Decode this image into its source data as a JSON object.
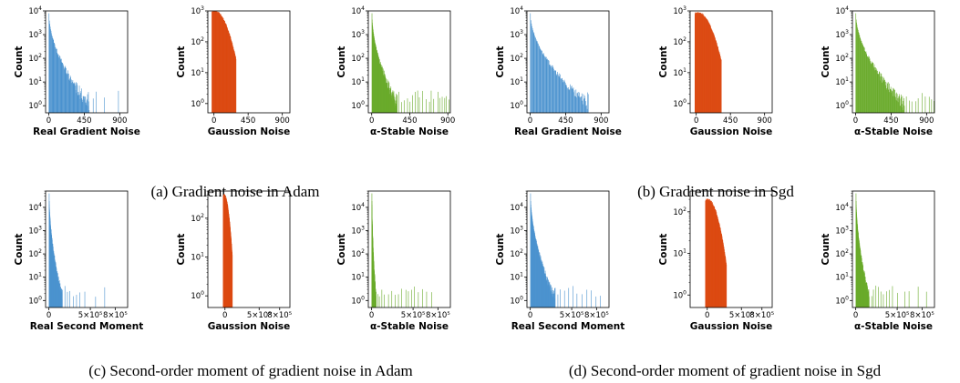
{
  "figure": {
    "captions": [
      "(a) Gradient noise in Adam",
      "(b) Gradient noise in Sgd",
      "(c) Second-order moment of gradient noise in Adam",
      "(d) Second-order moment of gradient noise in Sgd"
    ]
  },
  "colors": {
    "real": "#4c93cf",
    "gaussian": "#dc4a12",
    "stable": "#6aab2c"
  },
  "chart_data": [
    {
      "type": "bar",
      "panel": "a",
      "kind": "real",
      "ylabel": "Count",
      "xlabel": "Real Gradient Noise",
      "x_ticks": [
        "0",
        "450",
        "900"
      ],
      "xlim": [
        -40,
        1000
      ],
      "y_log": true,
      "y_ticks": [
        "10^0",
        "10^1",
        "10^2",
        "10^3",
        "10^4"
      ],
      "ylim_decades": [
        -0.3,
        4
      ],
      "decay": [
        3.9,
        -1.0,
        0,
        520,
        0.35,
        0.016
      ],
      "tail": [
        560,
        600,
        700,
        880
      ],
      "bins": 100
    },
    {
      "type": "bar",
      "panel": "a",
      "kind": "gaussian",
      "ylabel": "Count",
      "xlabel": "Gaussion Noise",
      "x_ticks": [
        "0",
        "450",
        "900"
      ],
      "xlim": [
        -80,
        1000
      ],
      "y_log": true,
      "y_ticks": [
        "10^0",
        "10^1",
        "10^2",
        "10^3"
      ],
      "ylim_decades": [
        -0.3,
        3
      ],
      "gauss": [
        3.0,
        -30,
        290
      ],
      "bins": 100
    },
    {
      "type": "bar",
      "panel": "a",
      "kind": "stable",
      "ylabel": "Count",
      "xlabel": "α-Stable Noise",
      "x_ticks": [
        "0",
        "450",
        "900"
      ],
      "xlim": [
        -40,
        930
      ],
      "y_log": true,
      "y_ticks": [
        "10^0",
        "10^1",
        "10^2",
        "10^3",
        "10^4"
      ],
      "ylim_decades": [
        -0.3,
        4
      ],
      "decay": [
        3.9,
        -1.7,
        0,
        300,
        0.35,
        0.03
      ],
      "tail": [
        320,
        350,
        380,
        420,
        450,
        480,
        510,
        540,
        560,
        600,
        640,
        680,
        700,
        730,
        780,
        800,
        830,
        860,
        880,
        910
      ],
      "bins": 130
    },
    {
      "type": "bar",
      "panel": "b",
      "kind": "real",
      "ylabel": "Count",
      "xlabel": "Real Gradient Noise",
      "x_ticks": [
        "0",
        "450",
        "900"
      ],
      "xlim": [
        -40,
        1000
      ],
      "y_log": true,
      "y_ticks": [
        "10^0",
        "10^1",
        "10^2",
        "10^3",
        "10^4"
      ],
      "ylim_decades": [
        -0.3,
        4
      ],
      "decay": [
        3.9,
        -1.0,
        0,
        740,
        0.25,
        0.03
      ],
      "tail": [],
      "bins": 110
    },
    {
      "type": "bar",
      "panel": "b",
      "kind": "gaussian",
      "ylabel": "Count",
      "xlabel": "Gaussion Noise",
      "x_ticks": [
        "0",
        "450",
        "900"
      ],
      "xlim": [
        -80,
        1000
      ],
      "y_log": true,
      "y_ticks": [
        "10^0",
        "10^1",
        "10^2",
        "10^3"
      ],
      "ylim_decades": [
        -0.3,
        3
      ],
      "gauss": [
        2.95,
        -20,
        330
      ],
      "bins": 100
    },
    {
      "type": "bar",
      "panel": "b",
      "kind": "stable",
      "ylabel": "Count",
      "xlabel": "α-Stable Noise",
      "x_ticks": [
        "0",
        "450",
        "900"
      ],
      "xlim": [
        -40,
        1000
      ],
      "y_log": true,
      "y_ticks": [
        "10^0",
        "10^1",
        "10^2",
        "10^3",
        "10^4"
      ],
      "ylim_decades": [
        -0.3,
        4
      ],
      "decay": [
        3.9,
        -1.7,
        0,
        620,
        0.35,
        0.025
      ],
      "tail": [
        640,
        680,
        710,
        760,
        790,
        840,
        880,
        930,
        960,
        990
      ],
      "bins": 130
    },
    {
      "type": "bar",
      "panel": "c",
      "kind": "real",
      "ylabel": "Count",
      "xlabel": "Real Second Moment",
      "x_ticks": [
        "0",
        "5×10⁵",
        "8×10⁵"
      ],
      "x_tick_values": [
        0,
        5,
        8
      ],
      "xlim": [
        -0.4,
        9.5
      ],
      "y_log": true,
      "y_ticks": [
        "10^0",
        "10^1",
        "10^2",
        "10^3",
        "10^4"
      ],
      "ylim_decades": [
        -0.3,
        4.7
      ],
      "decay": [
        4.6,
        -6,
        0,
        1.6,
        0.35,
        0.2
      ],
      "tail": [
        1.9,
        2.2,
        2.5,
        2.9,
        3.3,
        3.7,
        4.3,
        5.6,
        6.7
      ],
      "bins": 120
    },
    {
      "type": "bar",
      "panel": "c",
      "kind": "gaussian",
      "ylabel": "Count",
      "xlabel": "Gaussion Noise",
      "x_ticks": [
        "0",
        "5×10⁵",
        "8×10⁵"
      ],
      "x_tick_values": [
        0,
        5,
        8
      ],
      "xlim": [
        -2.5,
        9.5
      ],
      "y_log": true,
      "y_ticks": [
        "10^0",
        "10^1",
        "10^2"
      ],
      "ylim_decades": [
        -0.3,
        2.7
      ],
      "gauss": [
        2.6,
        -0.3,
        1.05
      ],
      "bins": 100
    },
    {
      "type": "bar",
      "panel": "c",
      "kind": "stable",
      "ylabel": "Count",
      "xlabel": "α-Stable Noise",
      "x_ticks": [
        "0",
        "5×10⁵",
        "8×10⁵"
      ],
      "x_tick_values": [
        0,
        5,
        8
      ],
      "xlim": [
        -0.4,
        9.5
      ],
      "y_log": true,
      "y_ticks": [
        "10^0",
        "10^1",
        "10^2",
        "10^3",
        "10^4"
      ],
      "ylim_decades": [
        -0.3,
        4.7
      ],
      "decay": [
        4.6,
        -8,
        0,
        0.5,
        0.3,
        0.08
      ],
      "tail": [
        0.7,
        0.9,
        1.2,
        1.5,
        2.0,
        2.4,
        2.8,
        3.2,
        3.6,
        4.1,
        4.4,
        4.8,
        5.1,
        5.6,
        6.1,
        6.6,
        7.2
      ],
      "bins": 120
    },
    {
      "type": "bar",
      "panel": "d",
      "kind": "real",
      "ylabel": "Count",
      "xlabel": "Real Second Moment",
      "x_ticks": [
        "0",
        "5×10⁵",
        "8×10⁵"
      ],
      "x_tick_values": [
        0,
        5,
        8
      ],
      "xlim": [
        -0.4,
        9.5
      ],
      "y_log": true,
      "y_ticks": [
        "10^0",
        "10^1",
        "10^2",
        "10^3",
        "10^4"
      ],
      "ylim_decades": [
        -0.3,
        4.7
      ],
      "decay": [
        4.6,
        -4,
        0,
        3.0,
        0.3,
        0.2
      ],
      "tail": [
        3.3,
        3.6,
        4.1,
        4.6,
        5.1,
        5.6,
        6.2,
        6.8,
        7.3,
        7.9,
        8.4
      ],
      "bins": 120
    },
    {
      "type": "bar",
      "panel": "d",
      "kind": "gaussian",
      "ylabel": "Count",
      "xlabel": "Gaussion Noise",
      "x_ticks": [
        "0",
        "5×10⁵",
        "8×10⁵"
      ],
      "x_tick_values": [
        0,
        5,
        8
      ],
      "xlim": [
        -2.5,
        9.5
      ],
      "y_log": true,
      "y_ticks": [
        "10^0",
        "10^1",
        "10^2"
      ],
      "ylim_decades": [
        -0.3,
        2.5
      ],
      "gauss": [
        2.3,
        -0.3,
        2.8
      ],
      "bins": 100
    },
    {
      "type": "bar",
      "panel": "d",
      "kind": "stable",
      "ylabel": "Count",
      "xlabel": "α-Stable Noise",
      "x_ticks": [
        "0",
        "5×10⁵",
        "8×10⁵"
      ],
      "x_tick_values": [
        0,
        5,
        8
      ],
      "xlim": [
        -0.4,
        9.5
      ],
      "y_log": true,
      "y_ticks": [
        "10^0",
        "10^1",
        "10^2",
        "10^3",
        "10^4"
      ],
      "ylim_decades": [
        -0.3,
        4.7
      ],
      "decay": [
        4.6,
        -5,
        0,
        1.6,
        0.35,
        0.15
      ],
      "tail": [
        1.9,
        2.1,
        2.4,
        2.7,
        3.0,
        3.3,
        3.7,
        4.0,
        4.4,
        5.0,
        5.9,
        6.4,
        7.5,
        8.5
      ],
      "bins": 120
    }
  ]
}
